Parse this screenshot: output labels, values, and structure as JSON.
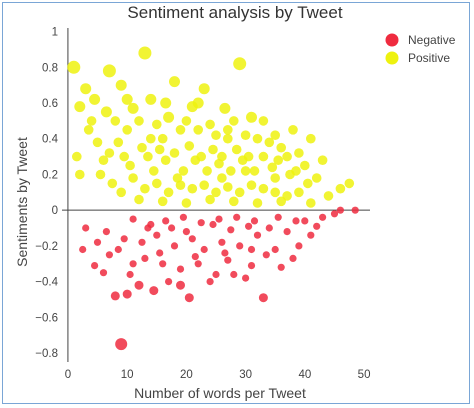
{
  "chart_data": {
    "type": "scatter",
    "title": "Sentiment analysis by Tweet",
    "xlabel": "Number of words per Tweet",
    "ylabel": "Sentiments by Tweet",
    "xlim": [
      -1,
      51
    ],
    "ylim": [
      -0.85,
      1.02
    ],
    "xticks": [
      0,
      10,
      20,
      30,
      40,
      50
    ],
    "yticks": [
      -0.8,
      -0.6,
      -0.4,
      -0.2,
      0,
      0.2,
      0.4,
      0.6,
      0.8,
      1
    ],
    "ytick_labels": [
      "−0.8",
      "−0.6",
      "−0.4",
      "−0.2",
      "0",
      "0.2",
      "0.4",
      "0.6",
      "0.8",
      "1"
    ],
    "grid": false,
    "legend_position": "top-right",
    "series": [
      {
        "name": "Negative",
        "color": "#ef2b3f",
        "points": [
          [
            9,
            -0.75
          ],
          [
            14.5,
            -0.45
          ],
          [
            8,
            -0.48
          ],
          [
            10,
            -0.47
          ],
          [
            20.5,
            -0.49
          ],
          [
            33,
            -0.49
          ],
          [
            4.5,
            -0.31
          ],
          [
            6,
            -0.35
          ],
          [
            12,
            -0.42
          ],
          [
            17,
            -0.4
          ],
          [
            24,
            -0.4
          ],
          [
            30,
            -0.38
          ],
          [
            36,
            -0.32
          ],
          [
            38,
            -0.27
          ],
          [
            39,
            -0.2
          ],
          [
            41,
            -0.14
          ],
          [
            42,
            -0.09
          ],
          [
            45,
            -0.02
          ],
          [
            48.5,
            0
          ],
          [
            3,
            -0.1
          ],
          [
            2.5,
            -0.22
          ],
          [
            7,
            -0.25
          ],
          [
            11,
            -0.3
          ],
          [
            13,
            -0.27
          ],
          [
            16,
            -0.3
          ],
          [
            19,
            -0.33
          ],
          [
            22,
            -0.3
          ],
          [
            25,
            -0.36
          ],
          [
            27,
            -0.28
          ],
          [
            28,
            -0.36
          ],
          [
            31,
            -0.31
          ],
          [
            33.5,
            -0.25
          ],
          [
            35,
            -0.22
          ],
          [
            29,
            -0.2
          ],
          [
            26,
            -0.18
          ],
          [
            23,
            -0.22
          ],
          [
            21,
            -0.16
          ],
          [
            18,
            -0.2
          ],
          [
            15,
            -0.14
          ],
          [
            12.5,
            -0.18
          ],
          [
            9.5,
            -0.16
          ],
          [
            8.5,
            -0.22
          ],
          [
            6.5,
            -0.12
          ],
          [
            5,
            -0.18
          ],
          [
            14,
            -0.08
          ],
          [
            17.5,
            -0.1
          ],
          [
            20,
            -0.12
          ],
          [
            24.5,
            -0.08
          ],
          [
            27.5,
            -0.11
          ],
          [
            30.5,
            -0.09
          ],
          [
            32,
            -0.14
          ],
          [
            34,
            -0.1
          ],
          [
            37,
            -0.12
          ],
          [
            40,
            -0.06
          ],
          [
            43,
            -0.04
          ],
          [
            46,
            0
          ],
          [
            11,
            -0.05
          ],
          [
            13.5,
            -0.1
          ],
          [
            16.5,
            -0.06
          ],
          [
            19.5,
            -0.04
          ],
          [
            22.5,
            -0.07
          ],
          [
            25.5,
            -0.05
          ],
          [
            28.5,
            -0.04
          ],
          [
            31.5,
            -0.06
          ],
          [
            35.5,
            -0.04
          ],
          [
            38.5,
            -0.06
          ],
          [
            10.5,
            -0.36
          ],
          [
            19,
            -0.42
          ],
          [
            15.5,
            -0.24
          ],
          [
            21.5,
            -0.26
          ],
          [
            26.5,
            -0.24
          ],
          [
            31,
            -0.22
          ]
        ]
      },
      {
        "name": "Positive",
        "color": "#eef20f",
        "points": [
          [
            13,
            0.88
          ],
          [
            29,
            0.82
          ],
          [
            1,
            0.8
          ],
          [
            7,
            0.78
          ],
          [
            18,
            0.72
          ],
          [
            23,
            0.68
          ],
          [
            3,
            0.68
          ],
          [
            2,
            0.58
          ],
          [
            4.5,
            0.62
          ],
          [
            9,
            0.7
          ],
          [
            14,
            0.62
          ],
          [
            11,
            0.57
          ],
          [
            26.5,
            0.57
          ],
          [
            21,
            0.58
          ],
          [
            31,
            0.52
          ],
          [
            33,
            0.5
          ],
          [
            38,
            0.45
          ],
          [
            41,
            0.4
          ],
          [
            43,
            0.28
          ],
          [
            46,
            0.12
          ],
          [
            47.5,
            0.15
          ],
          [
            44,
            0.08
          ],
          [
            1.5,
            0.3
          ],
          [
            2,
            0.2
          ],
          [
            3.5,
            0.45
          ],
          [
            5,
            0.38
          ],
          [
            6.5,
            0.55
          ],
          [
            8,
            0.5
          ],
          [
            10,
            0.45
          ],
          [
            12,
            0.5
          ],
          [
            15,
            0.48
          ],
          [
            16,
            0.4
          ],
          [
            17,
            0.52
          ],
          [
            19,
            0.45
          ],
          [
            20,
            0.5
          ],
          [
            22,
            0.45
          ],
          [
            24,
            0.48
          ],
          [
            25,
            0.42
          ],
          [
            27,
            0.45
          ],
          [
            28,
            0.5
          ],
          [
            30,
            0.42
          ],
          [
            32,
            0.4
          ],
          [
            34,
            0.38
          ],
          [
            35,
            0.42
          ],
          [
            36,
            0.35
          ],
          [
            37,
            0.3
          ],
          [
            39,
            0.32
          ],
          [
            40,
            0.25
          ],
          [
            42,
            0.18
          ],
          [
            8.5,
            0.38
          ],
          [
            9.5,
            0.3
          ],
          [
            10.5,
            0.25
          ],
          [
            12.5,
            0.35
          ],
          [
            13.5,
            0.3
          ],
          [
            14.5,
            0.22
          ],
          [
            15.5,
            0.34
          ],
          [
            16.5,
            0.28
          ],
          [
            18,
            0.32
          ],
          [
            19.5,
            0.22
          ],
          [
            20.5,
            0.36
          ],
          [
            21.5,
            0.28
          ],
          [
            22.5,
            0.3
          ],
          [
            23.5,
            0.22
          ],
          [
            24.5,
            0.34
          ],
          [
            25.5,
            0.26
          ],
          [
            26,
            0.3
          ],
          [
            27.5,
            0.22
          ],
          [
            28.5,
            0.34
          ],
          [
            29.5,
            0.28
          ],
          [
            30.5,
            0.3
          ],
          [
            31.5,
            0.22
          ],
          [
            33,
            0.3
          ],
          [
            34.5,
            0.24
          ],
          [
            35.5,
            0.28
          ],
          [
            37.5,
            0.2
          ],
          [
            38.5,
            0.22
          ],
          [
            40.5,
            0.15
          ],
          [
            6,
            0.28
          ],
          [
            7,
            0.32
          ],
          [
            5.5,
            0.2
          ],
          [
            11,
            0.18
          ],
          [
            13,
            0.12
          ],
          [
            15,
            0.15
          ],
          [
            17,
            0.1
          ],
          [
            19,
            0.14
          ],
          [
            21,
            0.12
          ],
          [
            23,
            0.14
          ],
          [
            25,
            0.1
          ],
          [
            27,
            0.13
          ],
          [
            29,
            0.1
          ],
          [
            31,
            0.14
          ],
          [
            33,
            0.12
          ],
          [
            35,
            0.1
          ],
          [
            37,
            0.08
          ],
          [
            39,
            0.1
          ],
          [
            9,
            0.1
          ],
          [
            7.5,
            0.15
          ],
          [
            12,
            0.06
          ],
          [
            16,
            0.05
          ],
          [
            20,
            0.04
          ],
          [
            24,
            0.06
          ],
          [
            28,
            0.05
          ],
          [
            32,
            0.04
          ],
          [
            36,
            0.05
          ],
          [
            41,
            0.04
          ],
          [
            10,
            0.62
          ],
          [
            16.5,
            0.6
          ],
          [
            22,
            0.6
          ],
          [
            27,
            0.4
          ],
          [
            30,
            0.22
          ],
          [
            35,
            0.18
          ],
          [
            4,
            0.5
          ],
          [
            18.5,
            0.18
          ],
          [
            26,
            0.18
          ],
          [
            14,
            0.4
          ]
        ]
      }
    ]
  }
}
